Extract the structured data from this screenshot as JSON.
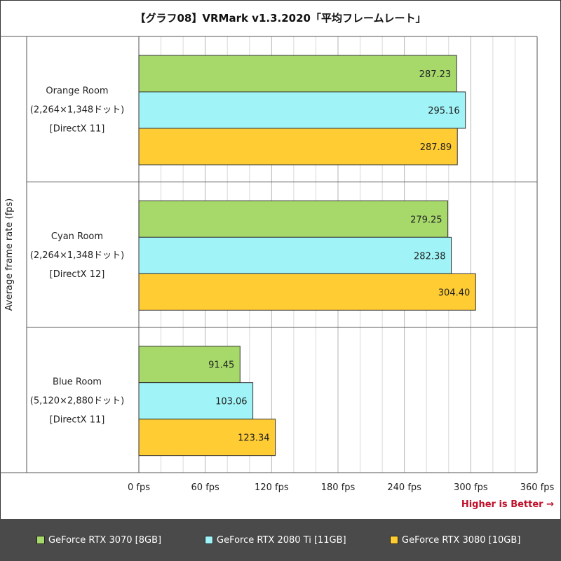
{
  "title": "【グラフ08】VRMark v1.3.2020「平均フレームレート」",
  "higher_is_better": "Higher is Better →",
  "colors": {
    "series1": "#a6d96a",
    "series2": "#a0f4f7",
    "series3": "#ffcc33",
    "footer": "#4a4a4a",
    "grid": "#d8d8d8",
    "better": "#c0102a"
  },
  "chart_data": {
    "type": "bar",
    "orientation": "horizontal",
    "title": "【グラフ08】VRMark v1.3.2020「平均フレームレート」",
    "ylabel": "Average frame rate (fps)",
    "xlim": [
      0,
      360
    ],
    "x_ticks": [
      0,
      60,
      120,
      180,
      240,
      300,
      360
    ],
    "x_tick_labels": [
      "0 fps",
      "60 fps",
      "120 fps",
      "180 fps",
      "240 fps",
      "300 fps",
      "360 fps"
    ],
    "grid": true,
    "legend_position": "bottom",
    "categories": [
      [
        "Orange Room",
        "(2,264×1,348ドット)",
        "[DirectX 11]"
      ],
      [
        "Cyan Room",
        "(2,264×1,348ドット)",
        "[DirectX 12]"
      ],
      [
        "Blue Room",
        "(5,120×2,880ドット)",
        "[DirectX 11]"
      ]
    ],
    "series": [
      {
        "name": "GeForce RTX 3070 [8GB]",
        "values": [
          287.23,
          279.25,
          91.45
        ],
        "labels": [
          "287.23",
          "279.25",
          "91.45"
        ]
      },
      {
        "name": "GeForce RTX 2080 Ti [11GB]",
        "values": [
          295.16,
          282.38,
          103.06
        ],
        "labels": [
          "295.16",
          "282.38",
          "103.06"
        ]
      },
      {
        "name": "GeForce RTX 3080 [10GB]",
        "values": [
          287.89,
          304.4,
          123.34
        ],
        "labels": [
          "287.89",
          "304.40",
          "123.34"
        ]
      }
    ]
  }
}
